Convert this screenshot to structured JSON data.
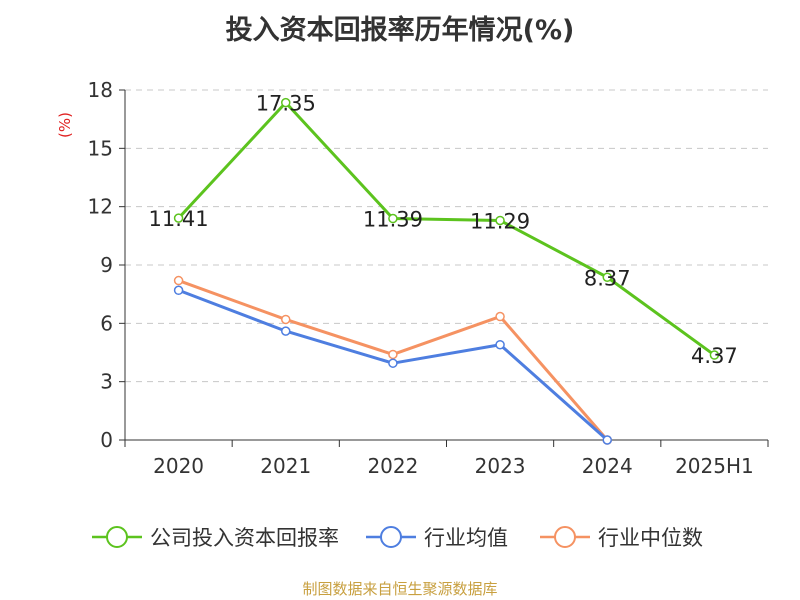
{
  "chart_data": {
    "type": "line",
    "title": "投入资本回报率历年情况(%)",
    "ylabel": "(%)",
    "xlabel": "",
    "categories": [
      "2020",
      "2021",
      "2022",
      "2023",
      "2024",
      "2025H1"
    ],
    "ylim": [
      0,
      18
    ],
    "yticks": [
      0,
      3,
      6,
      9,
      12,
      15,
      18
    ],
    "grid": true,
    "legend_position": "bottom",
    "series": [
      {
        "name": "公司投入资本回报率",
        "color": "#5cc31e",
        "values": [
          11.41,
          17.35,
          11.39,
          11.29,
          8.37,
          4.37
        ],
        "labels": [
          "11.41",
          "17.35",
          "11.39",
          "11.29",
          "8.37",
          "4.37"
        ]
      },
      {
        "name": "行业均值",
        "color": "#4e7ee0",
        "values": [
          7.7,
          5.6,
          3.95,
          4.9,
          0,
          null
        ]
      },
      {
        "name": "行业中位数",
        "color": "#f59262",
        "values": [
          8.2,
          6.2,
          4.4,
          6.35,
          0,
          null
        ]
      }
    ]
  },
  "footer": "制图数据来自恒生聚源数据库"
}
